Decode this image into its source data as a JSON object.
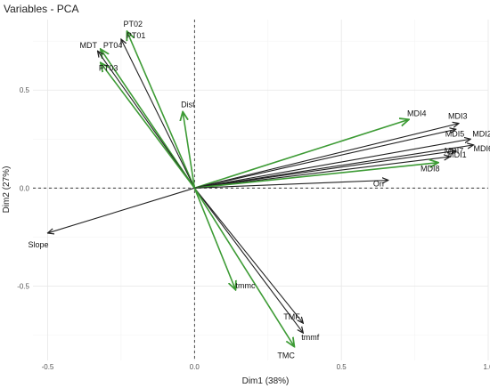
{
  "chart_data": {
    "type": "scatter",
    "title": "Variables - PCA",
    "xlabel": "Dim1 (38%)",
    "ylabel": "Dim2 (27%)",
    "xlim": [
      -0.55,
      1.0
    ],
    "ylim": [
      -0.88,
      0.86
    ],
    "x_ticks": [
      -0.5,
      0.0,
      0.5,
      1.0
    ],
    "x_tick_labels": [
      "-0.5",
      "0.0",
      "0.5",
      "1.0"
    ],
    "y_ticks": [
      -0.5,
      0.0,
      0.5
    ],
    "y_tick_labels": [
      "-0.5",
      "0.0",
      "0.5"
    ],
    "grid": true,
    "colors": {
      "green": "#3d9b35",
      "black": "#222222"
    },
    "vectors": [
      {
        "label": "PT02",
        "x": -0.23,
        "y": 0.8,
        "color": "green"
      },
      {
        "label": "PT01",
        "x": -0.25,
        "y": 0.76,
        "color": "black"
      },
      {
        "label": "PT04",
        "x": -0.32,
        "y": 0.71,
        "color": "green"
      },
      {
        "label": "MDT",
        "x": -0.33,
        "y": 0.7,
        "color": "black"
      },
      {
        "label": "PT03",
        "x": -0.32,
        "y": 0.64,
        "color": "green"
      },
      {
        "label": "Dist",
        "x": -0.04,
        "y": 0.39,
        "color": "green"
      },
      {
        "label": "MDI4",
        "x": 0.73,
        "y": 0.35,
        "color": "green"
      },
      {
        "label": "MDI3",
        "x": 0.9,
        "y": 0.33,
        "color": "black"
      },
      {
        "label": "MDI5",
        "x": 0.89,
        "y": 0.3,
        "color": "black"
      },
      {
        "label": "MDI2",
        "x": 0.94,
        "y": 0.25,
        "color": "black"
      },
      {
        "label": "MDI6",
        "x": 0.95,
        "y": 0.22,
        "color": "black"
      },
      {
        "label": "MDI7",
        "x": 0.89,
        "y": 0.19,
        "color": "black"
      },
      {
        "label": "MDI1",
        "x": 0.87,
        "y": 0.16,
        "color": "black"
      },
      {
        "label": "MDI8",
        "x": 0.83,
        "y": 0.13,
        "color": "green"
      },
      {
        "label": "Orr",
        "x": 0.66,
        "y": 0.04,
        "color": "black"
      },
      {
        "label": "Slope",
        "x": -0.5,
        "y": -0.23,
        "color": "black"
      },
      {
        "label": "tmmc",
        "x": 0.14,
        "y": -0.52,
        "color": "green"
      },
      {
        "label": "TMF",
        "x": 0.37,
        "y": -0.69,
        "color": "black"
      },
      {
        "label": "tmmf",
        "x": 0.37,
        "y": -0.74,
        "color": "black"
      },
      {
        "label": "TMC",
        "x": 0.34,
        "y": -0.81,
        "color": "green"
      }
    ]
  }
}
